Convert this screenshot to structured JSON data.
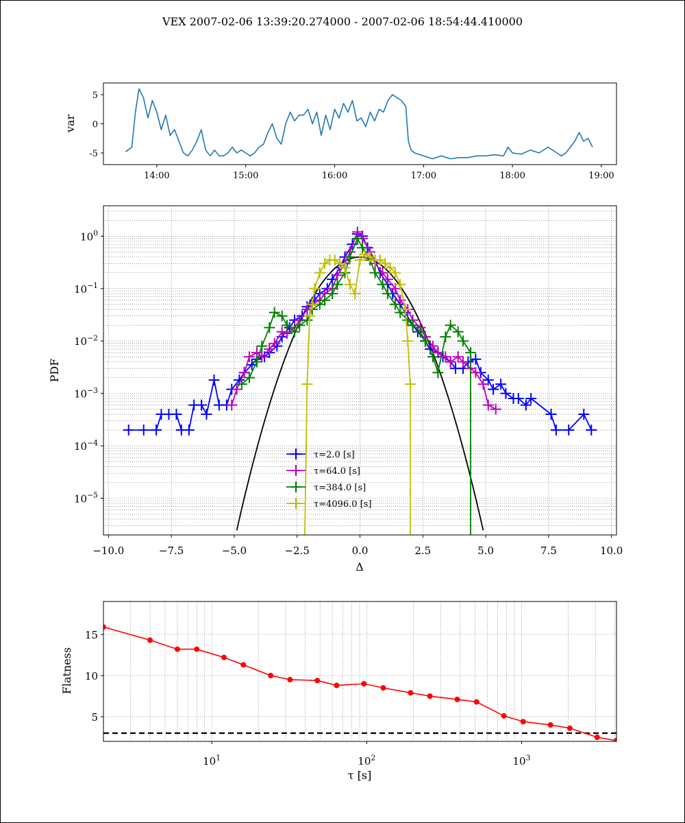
{
  "suptitle": "VEX  2007-02-06 13:39:20.274000 - 2007-02-06 18:54:44.410000",
  "chart_data": [
    {
      "type": "line",
      "panel": "timeseries",
      "ylabel": "var",
      "xticklabels": [
        "14:00",
        "15:00",
        "16:00",
        "17:00",
        "18:00",
        "19:00"
      ],
      "xtick_hours": [
        14,
        15,
        16,
        17,
        18,
        19
      ],
      "xlim_hours": [
        13.4,
        19.17
      ],
      "ylim": [
        -7,
        7
      ],
      "yticks": [
        -5,
        0,
        5
      ],
      "color": "#1f77b4",
      "x_hours": [
        13.65,
        13.72,
        13.76,
        13.8,
        13.85,
        13.9,
        13.95,
        14.0,
        14.05,
        14.1,
        14.15,
        14.2,
        14.25,
        14.3,
        14.35,
        14.4,
        14.45,
        14.5,
        14.55,
        14.6,
        14.65,
        14.7,
        14.75,
        14.8,
        14.85,
        14.9,
        14.95,
        15.0,
        15.05,
        15.1,
        15.15,
        15.2,
        15.25,
        15.3,
        15.35,
        15.4,
        15.45,
        15.5,
        15.55,
        15.6,
        15.65,
        15.7,
        15.75,
        15.8,
        15.85,
        15.9,
        15.95,
        16.0,
        16.05,
        16.1,
        16.15,
        16.2,
        16.25,
        16.3,
        16.35,
        16.4,
        16.45,
        16.5,
        16.55,
        16.6,
        16.65,
        16.7,
        16.75,
        16.8,
        16.83,
        16.86,
        16.9,
        17.0,
        17.1,
        17.2,
        17.3,
        17.4,
        17.5,
        17.6,
        17.7,
        17.8,
        17.9,
        17.95,
        18.0,
        18.1,
        18.2,
        18.3,
        18.4,
        18.5,
        18.55,
        18.6,
        18.65,
        18.7,
        18.75,
        18.8,
        18.85,
        18.9
      ],
      "values": [
        -4.8,
        -4.0,
        2.0,
        6.0,
        4.5,
        1.0,
        4.0,
        2.0,
        -1.0,
        1.5,
        -2.0,
        -1.0,
        -3.0,
        -5.0,
        -5.5,
        -4.5,
        -3.0,
        -1.0,
        -4.5,
        -5.5,
        -4.5,
        -5.5,
        -5.5,
        -5.0,
        -4.0,
        -5.0,
        -4.5,
        -5.0,
        -5.5,
        -5.0,
        -4.0,
        -3.5,
        -1.5,
        0.0,
        -2.5,
        -3.5,
        0.0,
        2.0,
        0.5,
        1.5,
        1.5,
        2.5,
        0.0,
        2.0,
        -2.0,
        1.5,
        -1.0,
        2.5,
        1.0,
        3.5,
        2.0,
        4.0,
        0.5,
        1.0,
        -0.5,
        2.0,
        0.5,
        2.5,
        2.0,
        4.0,
        5.0,
        4.5,
        4.0,
        3.0,
        -3.0,
        -4.5,
        -5.0,
        -5.5,
        -6.0,
        -5.5,
        -6.0,
        -5.8,
        -5.8,
        -5.5,
        -5.5,
        -5.3,
        -5.5,
        -4.0,
        -5.0,
        -5.2,
        -4.5,
        -5.0,
        -4.0,
        -5.0,
        -5.5,
        -5.0,
        -4.0,
        -3.0,
        -1.5,
        -3.0,
        -2.5,
        -4.0
      ]
    },
    {
      "type": "line",
      "panel": "pdf",
      "yscale": "log",
      "xlabel": "Δ",
      "ylabel": "PDF",
      "xlim": [
        -10.2,
        10.2
      ],
      "ylim_log10": [
        -5.7,
        0.58
      ],
      "xticks": [
        -10.0,
        -7.5,
        -5.0,
        -2.5,
        0.0,
        2.5,
        5.0,
        7.5,
        10.0
      ],
      "xticklabels": [
        "−10.0",
        "−7.5",
        "−5.0",
        "−2.5",
        "0.0",
        "2.5",
        "5.0",
        "7.5",
        "10.0"
      ],
      "yticks_exp": [
        0,
        -1,
        -2,
        -3,
        -4,
        -5
      ],
      "ytick_base": "10",
      "ytick_exponents": [
        "0",
        "−1",
        "−2",
        "−3",
        "−4",
        "−5"
      ],
      "grid": true,
      "legend": "lower center",
      "gaussian": {
        "color": "#000000",
        "mean": 0,
        "std": 1,
        "x_from": -4.9,
        "x_to": 4.9
      },
      "series": [
        {
          "name": "τ=2.0 [s]",
          "color": "#0000ff",
          "x": [
            -9.2,
            -8.6,
            -8.1,
            -7.9,
            -7.6,
            -7.3,
            -7.1,
            -6.8,
            -6.6,
            -6.3,
            -6.1,
            -5.8,
            -5.6,
            -5.3,
            -5.1,
            -4.8,
            -4.6,
            -4.3,
            -4.1,
            -3.8,
            -3.6,
            -3.3,
            -3.1,
            -2.8,
            -2.6,
            -2.3,
            -2.1,
            -1.8,
            -1.6,
            -1.3,
            -1.1,
            -0.8,
            -0.6,
            -0.3,
            -0.1,
            0.1,
            0.3,
            0.6,
            0.8,
            1.1,
            1.3,
            1.6,
            1.8,
            2.1,
            2.3,
            2.6,
            2.8,
            3.1,
            3.3,
            3.6,
            3.8,
            4.1,
            4.3,
            4.6,
            4.8,
            5.1,
            5.3,
            5.6,
            5.8,
            6.1,
            6.3,
            6.6,
            6.8,
            7.6,
            7.8,
            8.3,
            8.9,
            9.2
          ],
          "values": [
            0.0002,
            0.0002,
            0.0002,
            0.0004,
            0.0004,
            0.0004,
            0.0002,
            0.0002,
            0.0006,
            0.0006,
            0.0004,
            0.0018,
            0.0006,
            0.0006,
            0.0012,
            0.0018,
            0.0025,
            0.0035,
            0.0045,
            0.005,
            0.006,
            0.008,
            0.012,
            0.018,
            0.025,
            0.03,
            0.045,
            0.06,
            0.08,
            0.1,
            0.15,
            0.25,
            0.4,
            0.7,
            1.1,
            1.0,
            0.6,
            0.35,
            0.2,
            0.12,
            0.08,
            0.05,
            0.035,
            0.02,
            0.015,
            0.01,
            0.007,
            0.006,
            0.005,
            0.004,
            0.003,
            0.003,
            0.004,
            0.0045,
            0.0025,
            0.0018,
            0.0012,
            0.0015,
            0.001,
            0.0008,
            0.0008,
            0.0006,
            0.0008,
            0.0004,
            0.0002,
            0.0002,
            0.0004,
            0.0002
          ]
        },
        {
          "name": "τ=64.0 [s]",
          "color": "#bf00bf",
          "x": [
            -5.1,
            -4.9,
            -4.6,
            -4.4,
            -4.1,
            -3.9,
            -3.6,
            -3.4,
            -3.1,
            -2.9,
            -2.6,
            -2.4,
            -2.1,
            -1.9,
            -1.6,
            -1.4,
            -1.1,
            -0.9,
            -0.6,
            -0.4,
            -0.1,
            0.1,
            0.4,
            0.6,
            0.9,
            1.1,
            1.4,
            1.6,
            1.9,
            2.1,
            2.4,
            2.6,
            2.9,
            3.1,
            3.4,
            3.6,
            3.9,
            4.1,
            4.4,
            4.6,
            4.9,
            5.1,
            5.4
          ],
          "values": [
            0.0006,
            0.0012,
            0.0025,
            0.005,
            0.006,
            0.005,
            0.007,
            0.009,
            0.015,
            0.014,
            0.018,
            0.025,
            0.04,
            0.05,
            0.06,
            0.08,
            0.1,
            0.18,
            0.3,
            0.5,
            1.2,
            0.9,
            0.5,
            0.3,
            0.2,
            0.15,
            0.1,
            0.06,
            0.04,
            0.025,
            0.018,
            0.012,
            0.008,
            0.006,
            0.005,
            0.004,
            0.005,
            0.004,
            0.003,
            0.0025,
            0.0015,
            0.0006,
            0.0005
          ]
        },
        {
          "name": "τ=384.0 [s]",
          "color": "#008000",
          "x": [
            -4.7,
            -4.4,
            -4.1,
            -3.9,
            -3.6,
            -3.4,
            -3.1,
            -2.9,
            -2.6,
            -2.4,
            -2.1,
            -1.9,
            -1.6,
            -1.4,
            -1.1,
            -0.9,
            -0.6,
            -0.4,
            -0.1,
            0.1,
            0.4,
            0.6,
            0.9,
            1.1,
            1.4,
            1.6,
            1.9,
            2.1,
            2.4,
            2.6,
            2.9,
            3.1,
            3.4,
            3.6,
            3.9,
            4.1,
            4.4,
            4.4
          ],
          "values": [
            0.0015,
            0.002,
            0.004,
            0.008,
            0.018,
            0.035,
            0.03,
            0.02,
            0.015,
            0.02,
            0.025,
            0.04,
            0.05,
            0.06,
            0.08,
            0.12,
            0.2,
            0.4,
            0.9,
            0.6,
            0.35,
            0.2,
            0.12,
            0.08,
            0.05,
            0.035,
            0.025,
            0.02,
            0.015,
            0.01,
            0.005,
            0.0025,
            0.012,
            0.02,
            0.015,
            0.01,
            0.006,
            1e-07
          ]
        },
        {
          "name": "τ=4096.0 [s]",
          "color": "#bfbf00",
          "x": [
            -2.2,
            -2.1,
            -2.0,
            -1.9,
            -1.8,
            -1.6,
            -1.4,
            -1.2,
            -1.0,
            -0.8,
            -0.6,
            -0.4,
            -0.2,
            0.0,
            0.2,
            0.4,
            0.6,
            0.8,
            1.0,
            1.2,
            1.4,
            1.6,
            1.8,
            1.9,
            2.0,
            2.0
          ],
          "values": [
            1e-07,
            0.0015,
            0.03,
            0.05,
            0.1,
            0.2,
            0.3,
            0.35,
            0.35,
            0.3,
            0.25,
            0.12,
            0.08,
            0.35,
            0.45,
            0.4,
            0.35,
            0.35,
            0.3,
            0.25,
            0.2,
            0.12,
            0.04,
            0.01,
            0.0015,
            1e-07
          ]
        }
      ]
    },
    {
      "type": "line",
      "panel": "flatness",
      "xscale": "log",
      "xlabel": "τ [s]",
      "ylabel": "Flatness",
      "xlim": [
        2,
        4096
      ],
      "ylim": [
        2,
        19
      ],
      "yticks": [
        5,
        10,
        15
      ],
      "xtick_decades": [
        1,
        2,
        3
      ],
      "xtick_base": "10",
      "color": "#ff0000",
      "reference_line": {
        "y": 3,
        "color": "#000000",
        "style": "dashed"
      },
      "grid": true,
      "x": [
        2,
        4,
        6,
        8,
        12,
        16,
        24,
        32,
        48,
        64,
        96,
        128,
        192,
        256,
        384,
        512,
        768,
        1024,
        1536,
        2048,
        3072,
        4096
      ],
      "values": [
        15.9,
        14.3,
        13.2,
        13.2,
        12.2,
        11.3,
        10.0,
        9.5,
        9.4,
        8.8,
        9.0,
        8.5,
        7.9,
        7.5,
        7.1,
        6.8,
        5.1,
        4.4,
        4.0,
        3.6,
        2.5,
        2.1
      ]
    }
  ]
}
